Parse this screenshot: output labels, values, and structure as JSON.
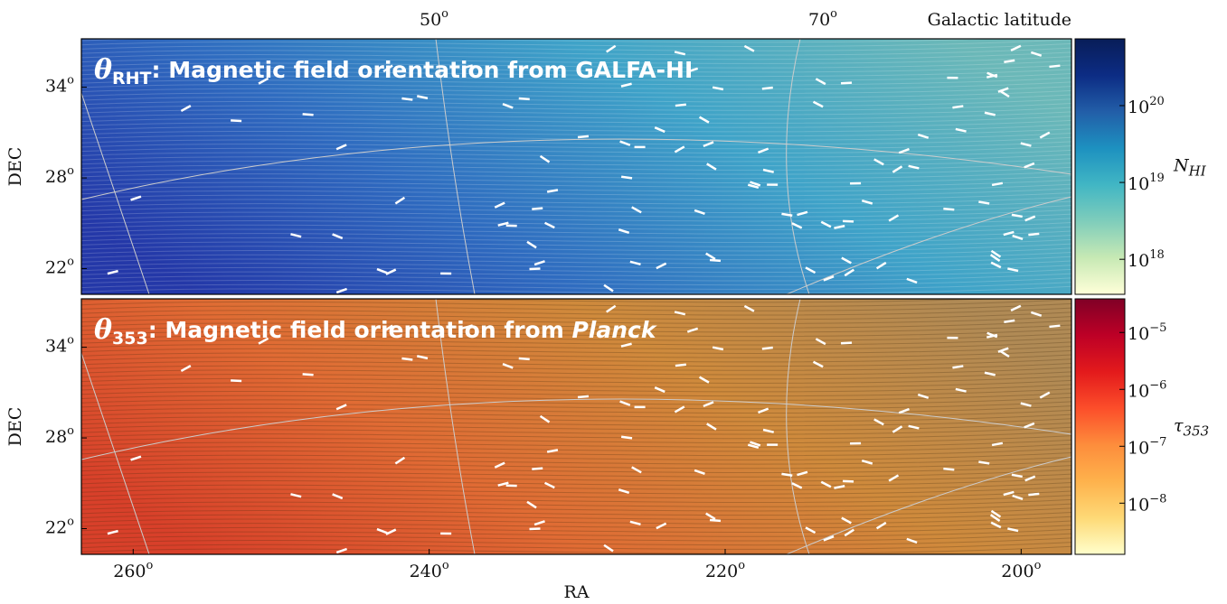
{
  "chart_data": [
    {
      "type": "map",
      "title": {
        "symbol": "θ",
        "sub": "RHT",
        "text": ": Magnetic field orientation from GALFA-HI"
      },
      "ylabel": "DEC",
      "x2label": "Galactic latitude",
      "x2ticks": [
        {
          "value": 50,
          "label": "50",
          "sup": "o"
        },
        {
          "value": 70,
          "label": "70",
          "sup": "o"
        }
      ],
      "xlim": [
        263.5,
        196.6
      ],
      "ylim": [
        20.3,
        37.2
      ],
      "yticks": [
        {
          "value": 22,
          "label": "22",
          "sup": "o"
        },
        {
          "value": 28,
          "label": "28",
          "sup": "o"
        },
        {
          "value": 34,
          "label": "34",
          "sup": "o"
        }
      ],
      "background": [
        "#2438a8",
        "#2f6cc0",
        "#3fa3c8",
        "#6bb8b8"
      ],
      "colorbar": {
        "label": {
          "symbol": "N",
          "sub": "HI"
        },
        "scale": "log",
        "lim": [
          3.5e+17,
          7.4e+20
        ],
        "colors": [
          "#ffffd9",
          "#c7e9b4",
          "#7fcdbb",
          "#41b6c4",
          "#1d91c0",
          "#225ea8",
          "#0c2c84",
          "#081d58"
        ],
        "ticks": [
          {
            "value": 1e+18,
            "label": "10",
            "sup": "18"
          },
          {
            "value": 1e+19,
            "label": "10",
            "sup": "19"
          },
          {
            "value": 1e+20,
            "label": "10",
            "sup": "20"
          }
        ]
      }
    },
    {
      "type": "map",
      "title": {
        "symbol": "θ",
        "sub": "353",
        "text": ": Magnetic field orientation from ",
        "italic": "Planck"
      },
      "ylabel": "DEC",
      "xlabel": "RA",
      "xlim": [
        263.5,
        196.6
      ],
      "ylim": [
        20.3,
        37.2
      ],
      "xticks": [
        {
          "value": 260,
          "label": "260",
          "sup": "o"
        },
        {
          "value": 240,
          "label": "240",
          "sup": "o"
        },
        {
          "value": 220,
          "label": "220",
          "sup": "o"
        },
        {
          "value": 200,
          "label": "200",
          "sup": "o"
        }
      ],
      "yticks": [
        {
          "value": 22,
          "label": "22",
          "sup": "o"
        },
        {
          "value": 28,
          "label": "28",
          "sup": "o"
        },
        {
          "value": 34,
          "label": "34",
          "sup": "o"
        }
      ],
      "background": [
        "#d8402a",
        "#e06b34",
        "#cf8a3c",
        "#b08a55"
      ],
      "colorbar": {
        "label": {
          "symbol": "τ",
          "sub": "353"
        },
        "scale": "log",
        "lim": [
          1.26e-09,
          3.9e-05
        ],
        "colors": [
          "#ffffcc",
          "#fed976",
          "#feb24c",
          "#fd8d3c",
          "#fc4e2a",
          "#e31a1c",
          "#bd0026",
          "#800026"
        ],
        "ticks": [
          {
            "value": 1e-08,
            "label": "10",
            "sup": "−8"
          },
          {
            "value": 1e-07,
            "label": "10",
            "sup": "−7"
          },
          {
            "value": 1e-06,
            "label": "10",
            "sup": "−6"
          },
          {
            "value": 1e-05,
            "label": "10",
            "sup": "−5"
          }
        ]
      }
    }
  ]
}
